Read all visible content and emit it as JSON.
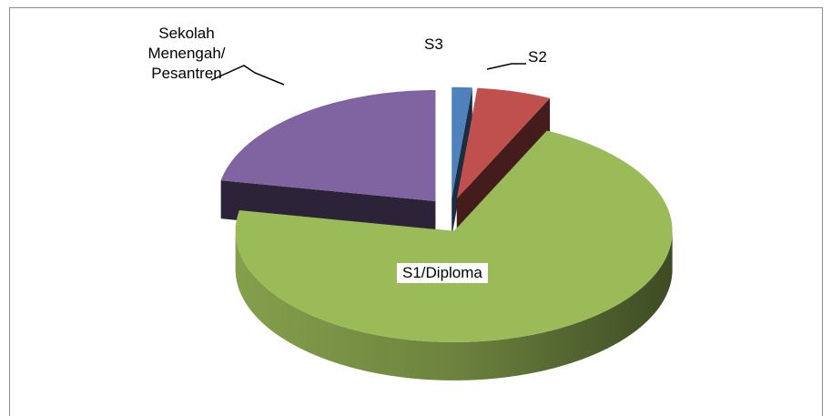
{
  "chart_data": {
    "type": "pie3d",
    "categories": [
      "S3",
      "S2",
      "S1/Diploma",
      "Sekolah Menengah/ Pesantren"
    ],
    "values": [
      1.5,
      5.5,
      71,
      22
    ],
    "colors": [
      "#4f81bd",
      "#c0504d",
      "#9bbb59",
      "#8064a2"
    ]
  }
}
